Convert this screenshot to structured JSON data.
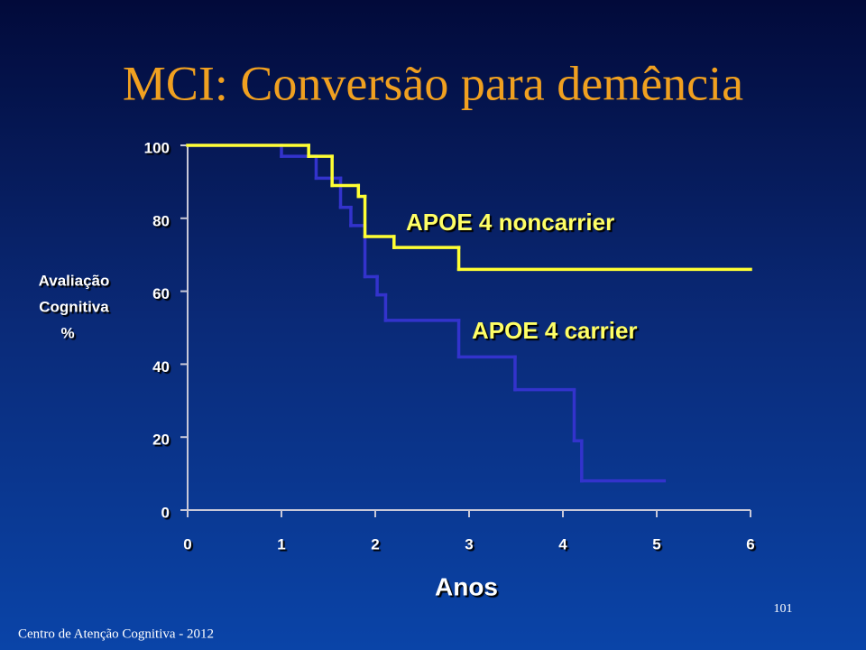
{
  "chart_data": {
    "type": "step",
    "title": "MCI: Conversão para demência",
    "y_label": [
      "Avaliação",
      "Cognitiva",
      "%"
    ],
    "x_label": "Anos",
    "xlim": [
      0,
      6
    ],
    "xticks": [
      0,
      1,
      2,
      3,
      4,
      5,
      6
    ],
    "ylim": [
      0,
      100
    ],
    "yticks": [
      0,
      20,
      40,
      60,
      80,
      100
    ],
    "series": [
      {
        "name": "APOE 4 noncarrier",
        "color": "#ffff33",
        "x": [
          0,
          1.29,
          1.54,
          1.82,
          1.89,
          2.2,
          2.89,
          6
        ],
        "values": [
          100,
          97,
          89,
          86,
          75,
          72,
          66,
          66
        ]
      },
      {
        "name": "APOE 4 carrier",
        "color": "#3333cc",
        "x": [
          0,
          1.0,
          1.37,
          1.63,
          1.74,
          1.89,
          2.02,
          2.11,
          2.89,
          3.49,
          4.12,
          4.2,
          5.08
        ],
        "values": [
          100,
          97,
          91,
          83,
          78,
          64,
          59,
          52,
          42,
          33,
          19,
          8,
          8
        ]
      }
    ]
  },
  "footer": "Centro de Atenção Cognitiva - 2012",
  "page_number": "101"
}
